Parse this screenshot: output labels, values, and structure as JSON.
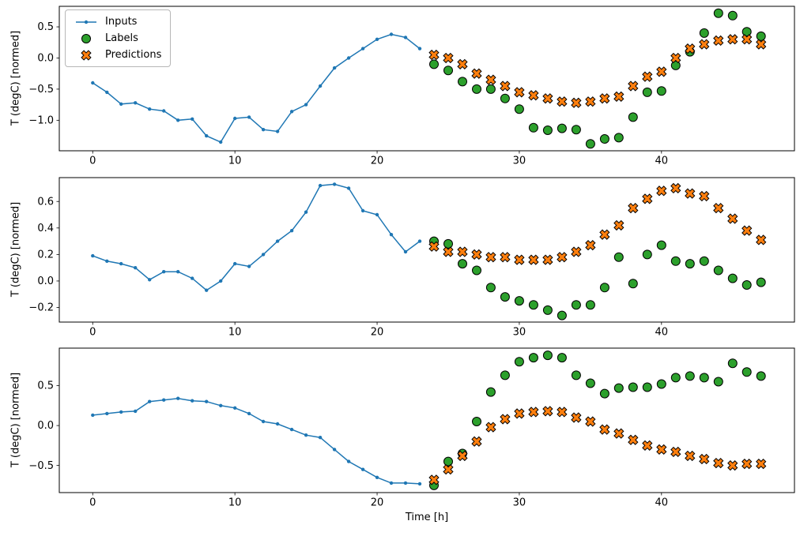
{
  "figure": {
    "background": "#ffffff",
    "xlabel": "Time [h]",
    "ylabel": "T (degC) [normed]",
    "legend": {
      "position": "upper-left",
      "items": [
        {
          "label": "Inputs",
          "marker": "line-dot",
          "color": "#1f77b4"
        },
        {
          "label": "Labels",
          "marker": "circle",
          "color": "#2ca02c",
          "edge": "#000000"
        },
        {
          "label": "Predictions",
          "marker": "x",
          "color": "#ff7f0e",
          "edge": "#000000"
        }
      ]
    }
  },
  "chart_data": [
    {
      "type": "line",
      "title": "",
      "xlabel": "",
      "ylabel": "T (degC) [normed]",
      "xlim": [
        -2.35,
        49.35
      ],
      "ylim": [
        -1.49,
        0.83
      ],
      "xticks": [
        0,
        10,
        20,
        30,
        40
      ],
      "yticks": [
        0.5,
        0.0,
        -0.5,
        -1.0
      ],
      "grid": false,
      "series": [
        {
          "name": "Inputs",
          "kind": "line-dot",
          "color": "#1f77b4",
          "x": [
            0,
            1,
            2,
            3,
            4,
            5,
            6,
            7,
            8,
            9,
            10,
            11,
            12,
            13,
            14,
            15,
            16,
            17,
            18,
            19,
            20,
            21,
            22,
            23
          ],
          "y": [
            -0.4,
            -0.55,
            -0.74,
            -0.72,
            -0.82,
            -0.85,
            -1.0,
            -0.98,
            -1.25,
            -1.35,
            -0.97,
            -0.95,
            -1.15,
            -1.18,
            -0.86,
            -0.75,
            -0.45,
            -0.16,
            0.0,
            0.15,
            0.3,
            0.38,
            0.33,
            0.15
          ]
        },
        {
          "name": "Labels",
          "kind": "scatter-circle",
          "color": "#2ca02c",
          "edge": "#000000",
          "x": [
            24,
            25,
            26,
            27,
            28,
            29,
            30,
            31,
            32,
            33,
            34,
            35,
            36,
            37,
            38,
            39,
            40,
            41,
            42,
            43,
            44,
            45,
            46,
            47
          ],
          "y": [
            -0.1,
            -0.2,
            -0.38,
            -0.5,
            -0.5,
            -0.65,
            -0.82,
            -1.12,
            -1.16,
            -1.13,
            -1.15,
            -1.38,
            -1.3,
            -1.28,
            -0.95,
            -0.55,
            -0.53,
            -0.12,
            0.1,
            0.4,
            0.72,
            0.68,
            0.42,
            0.35
          ]
        },
        {
          "name": "Predictions",
          "kind": "scatter-x",
          "color": "#ff7f0e",
          "edge": "#000000",
          "x": [
            24,
            25,
            26,
            27,
            28,
            29,
            30,
            31,
            32,
            33,
            34,
            35,
            36,
            37,
            38,
            39,
            40,
            41,
            42,
            43,
            44,
            45,
            46,
            47
          ],
          "y": [
            0.05,
            0.0,
            -0.1,
            -0.25,
            -0.35,
            -0.45,
            -0.55,
            -0.6,
            -0.65,
            -0.7,
            -0.72,
            -0.7,
            -0.65,
            -0.62,
            -0.45,
            -0.3,
            -0.22,
            0.0,
            0.15,
            0.22,
            0.28,
            0.3,
            0.3,
            0.22
          ]
        }
      ]
    },
    {
      "type": "line",
      "title": "",
      "xlabel": "",
      "ylabel": "T (degC) [normed]",
      "xlim": [
        -2.35,
        49.35
      ],
      "ylim": [
        -0.31,
        0.78
      ],
      "xticks": [
        0,
        10,
        20,
        30,
        40
      ],
      "yticks": [
        0.6,
        0.4,
        0.2,
        0.0,
        -0.2
      ],
      "grid": false,
      "series": [
        {
          "name": "Inputs",
          "kind": "line-dot",
          "color": "#1f77b4",
          "x": [
            0,
            1,
            2,
            3,
            4,
            5,
            6,
            7,
            8,
            9,
            10,
            11,
            12,
            13,
            14,
            15,
            16,
            17,
            18,
            19,
            20,
            21,
            22,
            23
          ],
          "y": [
            0.19,
            0.15,
            0.13,
            0.1,
            0.01,
            0.07,
            0.07,
            0.02,
            -0.07,
            0.0,
            0.13,
            0.11,
            0.2,
            0.3,
            0.38,
            0.52,
            0.72,
            0.73,
            0.7,
            0.53,
            0.5,
            0.35,
            0.22,
            0.3
          ]
        },
        {
          "name": "Labels",
          "kind": "scatter-circle",
          "color": "#2ca02c",
          "edge": "#000000",
          "x": [
            24,
            25,
            26,
            27,
            28,
            29,
            30,
            31,
            32,
            33,
            34,
            35,
            36,
            37,
            38,
            39,
            40,
            41,
            42,
            43,
            44,
            45,
            46,
            47
          ],
          "y": [
            0.3,
            0.28,
            0.13,
            0.08,
            -0.05,
            -0.12,
            -0.15,
            -0.18,
            -0.22,
            -0.26,
            -0.18,
            -0.18,
            -0.05,
            0.18,
            -0.02,
            0.2,
            0.27,
            0.15,
            0.13,
            0.15,
            0.08,
            0.02,
            -0.03,
            -0.01
          ]
        },
        {
          "name": "Predictions",
          "kind": "scatter-x",
          "color": "#ff7f0e",
          "edge": "#000000",
          "x": [
            24,
            25,
            26,
            27,
            28,
            29,
            30,
            31,
            32,
            33,
            34,
            35,
            36,
            37,
            38,
            39,
            40,
            41,
            42,
            43,
            44,
            45,
            46,
            47
          ],
          "y": [
            0.26,
            0.22,
            0.22,
            0.2,
            0.18,
            0.18,
            0.16,
            0.16,
            0.16,
            0.18,
            0.22,
            0.27,
            0.35,
            0.42,
            0.55,
            0.62,
            0.68,
            0.7,
            0.66,
            0.64,
            0.55,
            0.47,
            0.38,
            0.31
          ]
        }
      ]
    },
    {
      "type": "line",
      "title": "",
      "xlabel": "Time [h]",
      "ylabel": "T (degC) [normed]",
      "xlim": [
        -2.35,
        49.35
      ],
      "ylim": [
        -0.84,
        0.97
      ],
      "xticks": [
        0,
        10,
        20,
        30,
        40
      ],
      "yticks": [
        0.5,
        0.0,
        -0.5
      ],
      "grid": false,
      "series": [
        {
          "name": "Inputs",
          "kind": "line-dot",
          "color": "#1f77b4",
          "x": [
            0,
            1,
            2,
            3,
            4,
            5,
            6,
            7,
            8,
            9,
            10,
            11,
            12,
            13,
            14,
            15,
            16,
            17,
            18,
            19,
            20,
            21,
            22,
            23
          ],
          "y": [
            0.13,
            0.15,
            0.17,
            0.18,
            0.3,
            0.32,
            0.34,
            0.31,
            0.3,
            0.25,
            0.22,
            0.15,
            0.05,
            0.02,
            -0.05,
            -0.12,
            -0.15,
            -0.3,
            -0.45,
            -0.55,
            -0.65,
            -0.72,
            -0.72,
            -0.73
          ]
        },
        {
          "name": "Labels",
          "kind": "scatter-circle",
          "color": "#2ca02c",
          "edge": "#000000",
          "x": [
            24,
            25,
            26,
            27,
            28,
            29,
            30,
            31,
            32,
            33,
            34,
            35,
            36,
            37,
            38,
            39,
            40,
            41,
            42,
            43,
            44,
            45,
            46,
            47
          ],
          "y": [
            -0.75,
            -0.45,
            -0.35,
            0.05,
            0.42,
            0.63,
            0.8,
            0.85,
            0.88,
            0.85,
            0.63,
            0.53,
            0.4,
            0.47,
            0.48,
            0.48,
            0.52,
            0.6,
            0.62,
            0.6,
            0.55,
            0.78,
            0.67,
            0.62
          ]
        },
        {
          "name": "Predictions",
          "kind": "scatter-x",
          "color": "#ff7f0e",
          "edge": "#000000",
          "x": [
            24,
            25,
            26,
            27,
            28,
            29,
            30,
            31,
            32,
            33,
            34,
            35,
            36,
            37,
            38,
            39,
            40,
            41,
            42,
            43,
            44,
            45,
            46,
            47
          ],
          "y": [
            -0.68,
            -0.55,
            -0.38,
            -0.2,
            -0.02,
            0.08,
            0.15,
            0.17,
            0.18,
            0.17,
            0.1,
            0.05,
            -0.05,
            -0.1,
            -0.18,
            -0.25,
            -0.3,
            -0.33,
            -0.38,
            -0.42,
            -0.47,
            -0.5,
            -0.48,
            -0.48
          ]
        }
      ]
    }
  ]
}
